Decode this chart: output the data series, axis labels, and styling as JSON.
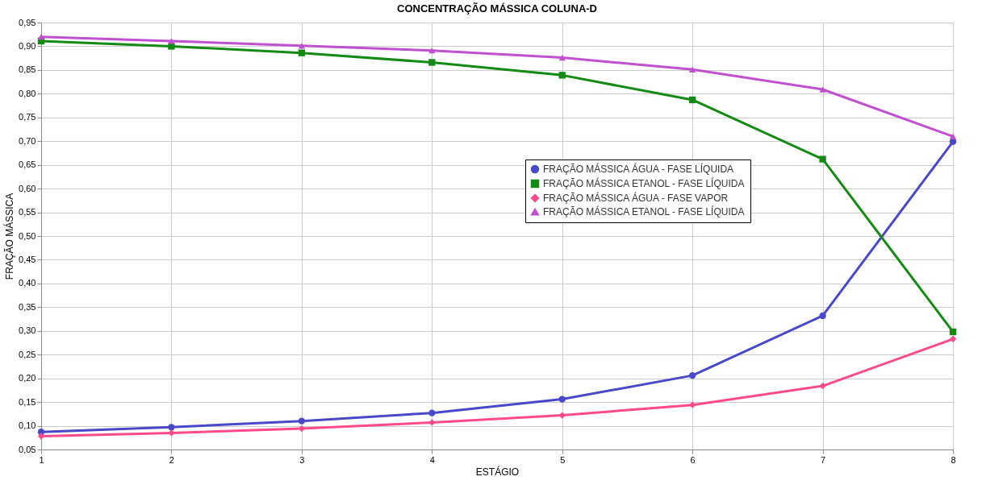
{
  "chart_data": {
    "type": "line",
    "title": "CONCENTRAÇÃO MÁSSICA COLUNA-D",
    "xlabel": "ESTÁGIO",
    "ylabel": "FRAÇÃO MÁSSICA",
    "x": [
      1,
      2,
      3,
      4,
      5,
      6,
      7,
      8
    ],
    "series": [
      {
        "name": "FRAÇÃO MÁSSICA ÁGUA - FASE LÍQUIDA",
        "color": "#4848c8",
        "marker": "circle",
        "values": [
          0.087,
          0.097,
          0.11,
          0.127,
          0.156,
          0.206,
          0.332,
          0.699
        ]
      },
      {
        "name": "FRAÇÃO MÁSSICA ETANOL - FASE LÍQUIDA",
        "color": "#138a13",
        "marker": "square",
        "values": [
          0.911,
          0.9,
          0.886,
          0.866,
          0.839,
          0.787,
          0.662,
          0.298
        ]
      },
      {
        "name": "FRAÇÃO MÁSSICA ÁGUA - FASE VAPOR",
        "color": "#ff4a8c",
        "marker": "diamond",
        "values": [
          0.078,
          0.085,
          0.094,
          0.107,
          0.122,
          0.144,
          0.184,
          0.283
        ]
      },
      {
        "name": "FRAÇÃO MÁSSICA ETANOL - FASE LÍQUIDA",
        "color": "#c050d0",
        "marker": "triangle",
        "values": [
          0.92,
          0.911,
          0.901,
          0.891,
          0.876,
          0.851,
          0.809,
          0.71
        ]
      }
    ],
    "xlim": [
      1,
      8
    ],
    "xticks": [
      1,
      2,
      3,
      4,
      5,
      6,
      7,
      8
    ],
    "ylim": [
      0.05,
      0.95
    ],
    "yticks": [
      {
        "value": 0.05,
        "label": "0,05"
      },
      {
        "value": 0.1,
        "label": "0,10"
      },
      {
        "value": 0.15,
        "label": "0,15"
      },
      {
        "value": 0.2,
        "label": "0,20"
      },
      {
        "value": 0.25,
        "label": "0,25"
      },
      {
        "value": 0.3,
        "label": "0,30"
      },
      {
        "value": 0.35,
        "label": "0,35"
      },
      {
        "value": 0.4,
        "label": "0,40"
      },
      {
        "value": 0.45,
        "label": "0,45"
      },
      {
        "value": 0.5,
        "label": "0,50"
      },
      {
        "value": 0.55,
        "label": "0,55"
      },
      {
        "value": 0.6,
        "label": "0,60"
      },
      {
        "value": 0.65,
        "label": "0,65"
      },
      {
        "value": 0.7,
        "label": "0,70"
      },
      {
        "value": 0.75,
        "label": "0,75"
      },
      {
        "value": 0.8,
        "label": "0,80"
      },
      {
        "value": 0.85,
        "label": "0,85"
      },
      {
        "value": 0.9,
        "label": "0,90"
      },
      {
        "value": 0.95,
        "label": "0,95"
      }
    ],
    "grid": true,
    "legend": "right",
    "line_style": "solid"
  }
}
